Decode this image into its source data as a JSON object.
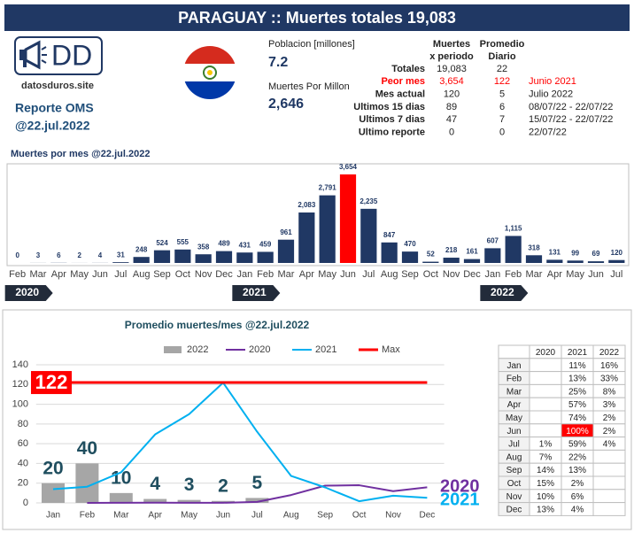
{
  "header": {
    "title": "PARAGUAY :: Muertes totales 19,083"
  },
  "logo": {
    "text": "DD",
    "site": "datosduros.site",
    "report": "Reporte OMS",
    "date": "@22.jul.2022"
  },
  "info": {
    "population_label": "Poblacion [millones]",
    "population": "7.2",
    "per_million_label": "Muertes Por Millon",
    "per_million": "2,646"
  },
  "stats": {
    "columns": [
      [
        "Muertes",
        "x periodo"
      ],
      [
        "Promedio",
        "Diario"
      ]
    ],
    "rows": [
      {
        "cells": [
          "Totales",
          "19,083",
          "22"
        ]
      },
      {
        "cells": [
          "Peor mes",
          "3,654",
          "122",
          "Junio 2021"
        ],
        "color": "#ff0000"
      },
      {
        "cells": [
          "Mes actual",
          "120",
          "5",
          "Julio 2022"
        ]
      },
      {
        "cells": [
          "Ultimos 15 dias",
          "89",
          "6",
          "08/07/22 - 22/07/22"
        ]
      },
      {
        "cells": [
          "Ultimos 7 dias",
          "47",
          "7",
          "15/07/22 - 22/07/22"
        ]
      },
      {
        "cells": [
          "Ultimo reporte",
          "0",
          "0",
          "22/07/22"
        ]
      }
    ]
  },
  "chart_data": [
    {
      "type": "bar",
      "title": "Muertes por mes @22.jul.2022",
      "categories": [
        "Feb",
        "Mar",
        "Apr",
        "May",
        "Jun",
        "Jul",
        "Aug",
        "Sep",
        "Oct",
        "Nov",
        "Dec",
        "Jan",
        "Feb",
        "Mar",
        "Apr",
        "May",
        "Jun",
        "Jul",
        "Aug",
        "Sep",
        "Oct",
        "Nov",
        "Dec",
        "Jan",
        "Feb",
        "Mar",
        "Apr",
        "May",
        "Jun",
        "Jul"
      ],
      "years": [
        "2020",
        "2021",
        "2022"
      ],
      "values": [
        0,
        3,
        6,
        2,
        4,
        31,
        248,
        524,
        555,
        358,
        489,
        431,
        459,
        961,
        2083,
        2791,
        3654,
        2235,
        847,
        470,
        52,
        218,
        161,
        607,
        1115,
        318,
        131,
        99,
        69,
        120
      ],
      "value_labels": [
        "0",
        "3",
        "6",
        "2",
        "4",
        "31",
        "248",
        "524",
        "555",
        "358",
        "489",
        "431",
        "459",
        "961",
        "2,083",
        "2,791",
        "3,654",
        "2,235",
        "847",
        "470",
        "52",
        "218",
        "161",
        "607",
        "1,115",
        "318",
        "131",
        "99",
        "69",
        "120"
      ],
      "color": "#203864",
      "highlight_color": "#ff0000"
    },
    {
      "type": "combo",
      "title": "Promedio muertes/mes @22.jul.2022",
      "categories": [
        "Jan",
        "Feb",
        "Mar",
        "Apr",
        "May",
        "Jun",
        "Jul",
        "Aug",
        "Sep",
        "Oct",
        "Nov",
        "Dec"
      ],
      "ylim": [
        0,
        140
      ],
      "yticks": [
        0,
        20,
        40,
        60,
        80,
        100,
        120,
        140
      ],
      "grid": true,
      "series": [
        {
          "name": "2022",
          "type": "bar",
          "color": "#a6a6a6",
          "values": [
            20,
            40,
            10,
            4,
            3,
            2,
            5,
            null,
            null,
            null,
            null,
            null
          ]
        },
        {
          "name": "2020",
          "type": "line",
          "color": "#7030a0",
          "values": [
            null,
            0,
            0.1,
            0.2,
            0.1,
            0.1,
            1,
            8,
            17.5,
            17.9,
            11.9,
            15.8
          ]
        },
        {
          "name": "2021",
          "type": "line",
          "color": "#00b0f0",
          "values": [
            13.9,
            16.4,
            31,
            69.4,
            90,
            121.8,
            72.1,
            27.3,
            15.7,
            1.7,
            7.3,
            5.2
          ]
        },
        {
          "name": "Max",
          "type": "line",
          "color": "#ff0000",
          "values": [
            122,
            122,
            122,
            122,
            122,
            122,
            122,
            122,
            122,
            122,
            122,
            122
          ]
        }
      ]
    }
  ],
  "table": {
    "columns": [
      "2020",
      "2021",
      "2022"
    ],
    "rows": [
      {
        "label": "Jan",
        "cells": [
          null,
          "11%",
          "16%"
        ]
      },
      {
        "label": "Feb",
        "cells": [
          null,
          "13%",
          "33%"
        ]
      },
      {
        "label": "Mar",
        "cells": [
          null,
          "25%",
          "8%"
        ]
      },
      {
        "label": "Apr",
        "cells": [
          null,
          "57%",
          "3%"
        ]
      },
      {
        "label": "May",
        "cells": [
          null,
          "74%",
          "2%"
        ]
      },
      {
        "label": "Jun",
        "cells": [
          null,
          {
            "text": "100%",
            "color": "#ff0000"
          },
          "2%"
        ]
      },
      {
        "label": "Jul",
        "cells": [
          "1%",
          "59%",
          "4%"
        ]
      },
      {
        "label": "Aug",
        "cells": [
          "7%",
          "22%",
          null
        ]
      },
      {
        "label": "Sep",
        "cells": [
          "14%",
          "13%",
          null
        ]
      },
      {
        "label": "Oct",
        "cells": [
          "15%",
          "2%",
          null
        ]
      },
      {
        "label": "Nov",
        "cells": [
          "10%",
          "6%",
          null
        ]
      },
      {
        "label": "Dec",
        "cells": [
          "13%",
          "4%",
          null
        ]
      }
    ]
  }
}
